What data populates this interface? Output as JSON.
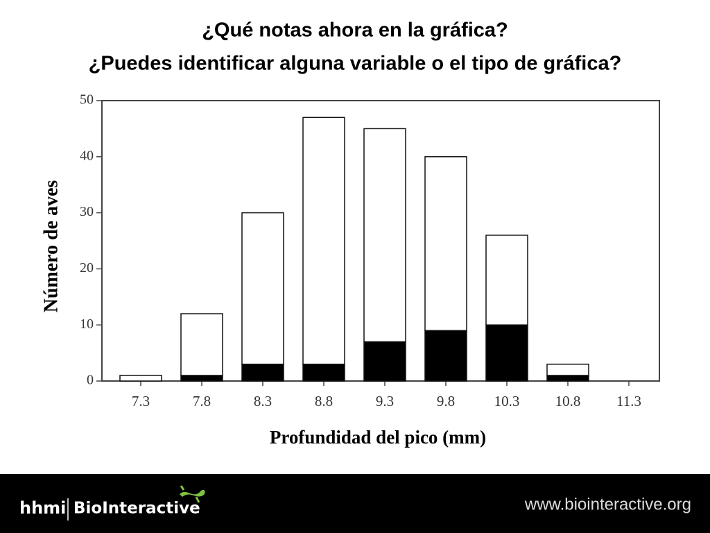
{
  "title_lines": [
    "¿Qué notas ahora en la gráfica?",
    "¿Puedes identificar alguna variable o el tipo de gráfica?"
  ],
  "chart_data": {
    "type": "stacked-bar",
    "categories": [
      "7.3",
      "7.8",
      "8.3",
      "8.8",
      "9.3",
      "9.8",
      "10.3",
      "10.8",
      "11.3"
    ],
    "series": [
      {
        "color": "#000000",
        "values": [
          0,
          1,
          3,
          3,
          7,
          9,
          10,
          1,
          0
        ]
      },
      {
        "color": "#ffffff",
        "values": [
          1,
          11,
          27,
          44,
          38,
          31,
          16,
          2,
          0
        ]
      }
    ],
    "ylim": [
      0,
      50
    ],
    "yticks": [
      0,
      10,
      20,
      30,
      40,
      50
    ],
    "x_label": "Profundidad del pico (mm)",
    "y_label": "Número de aves"
  },
  "footer": {
    "logo_left": "hhmi",
    "logo_right": "BioInteractive",
    "url": "www.biointeractive.org"
  }
}
